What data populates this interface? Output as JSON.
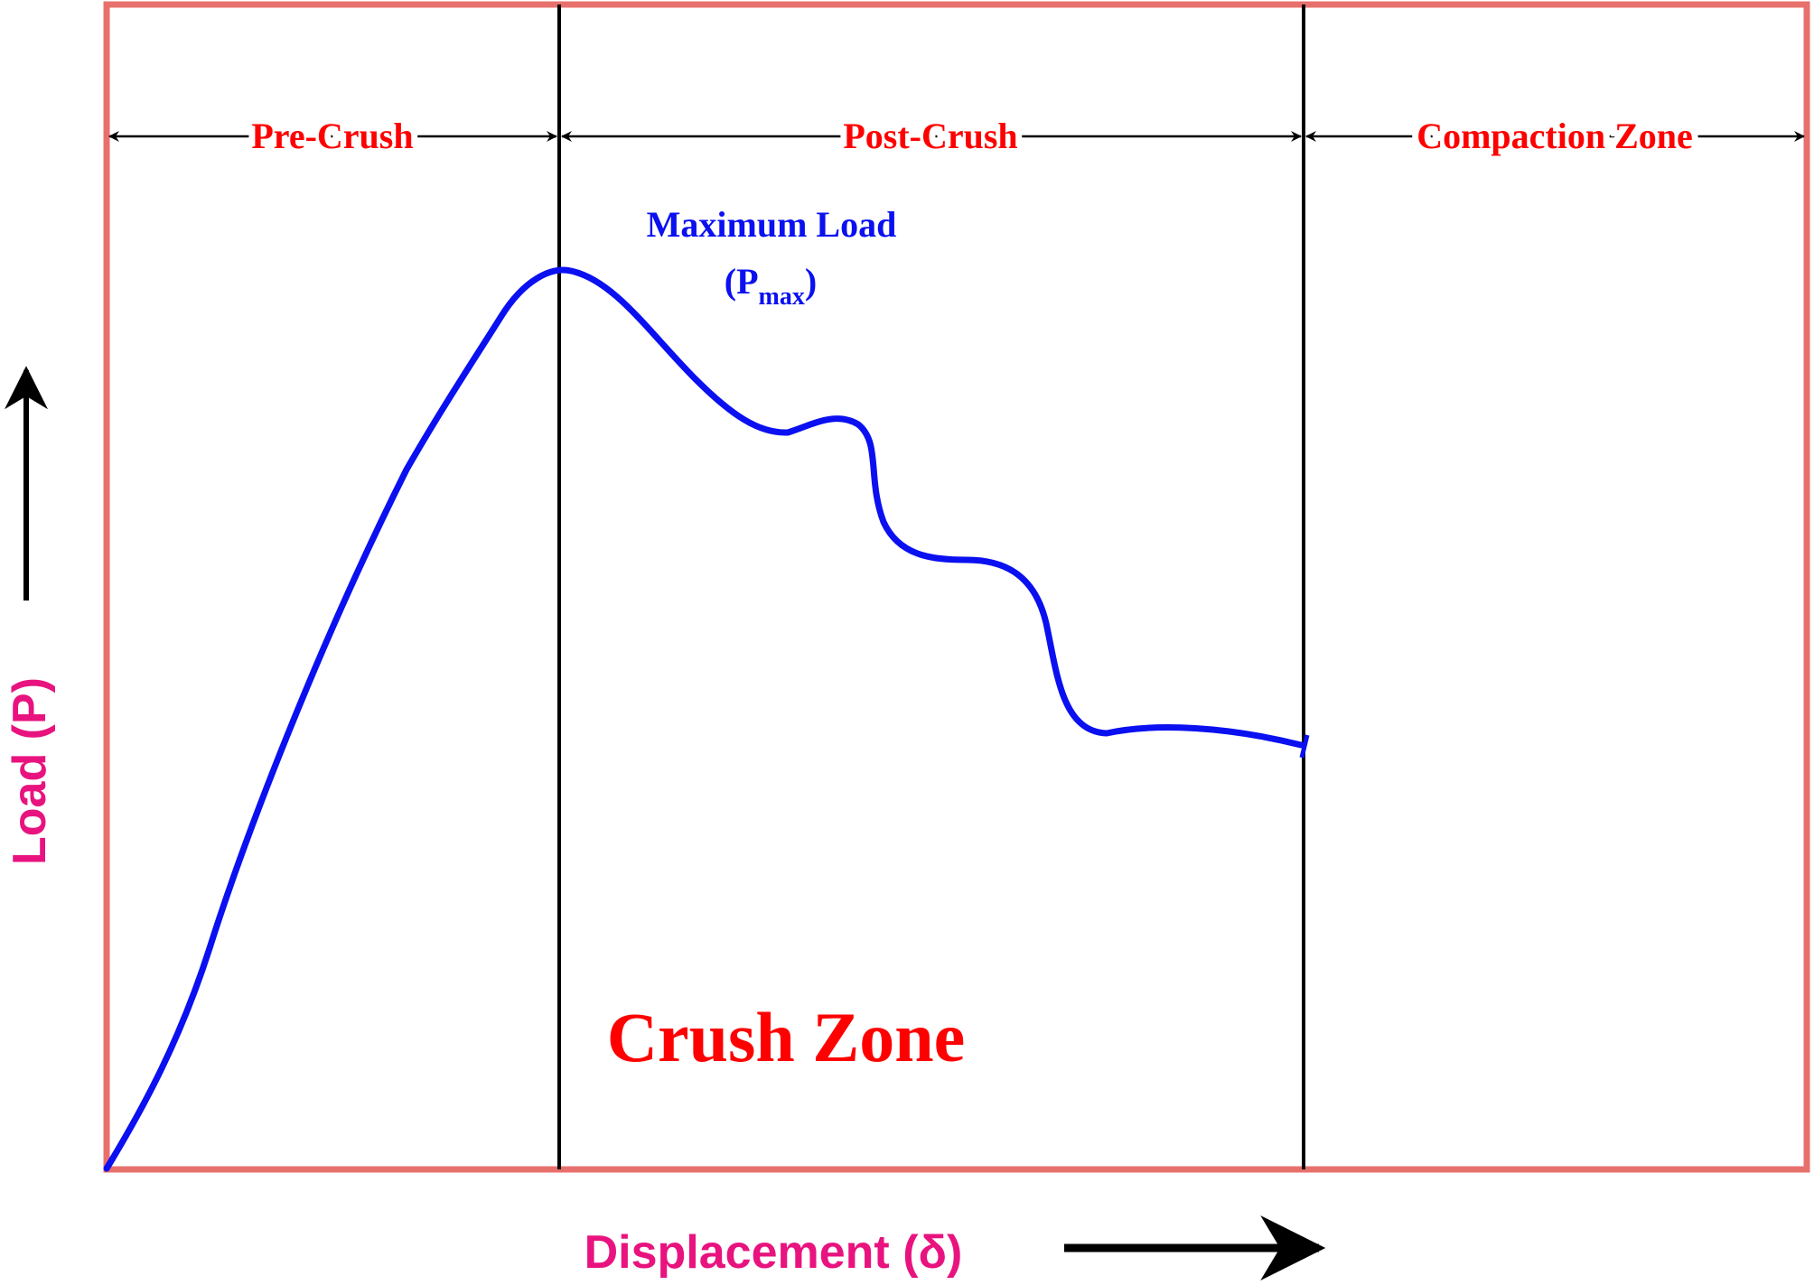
{
  "colors": {
    "frame": "#e8706c",
    "divider": "#000000",
    "curve": "#0a10f0",
    "zone_label": "#ff0000",
    "axis_label": "#e8137f",
    "annotation": "#0a10f0",
    "arrow": "#000000"
  },
  "zones": {
    "pre_crush": "Pre-Crush",
    "post_crush": "Post-Crush",
    "compaction": "Compaction Zone",
    "crush_zone": "Crush Zone"
  },
  "annotation": {
    "line1": "Maximum Load",
    "open_paren": "(P",
    "subscript": "max",
    "close_paren": ")"
  },
  "axes": {
    "x_label": "Displacement (δ)",
    "y_label": "Load (P)"
  },
  "icons": {
    "x_axis_arrow": "arrow-right-icon",
    "y_axis_arrow": "arrow-up-icon",
    "span_arrows": "double-arrow-icon"
  }
}
